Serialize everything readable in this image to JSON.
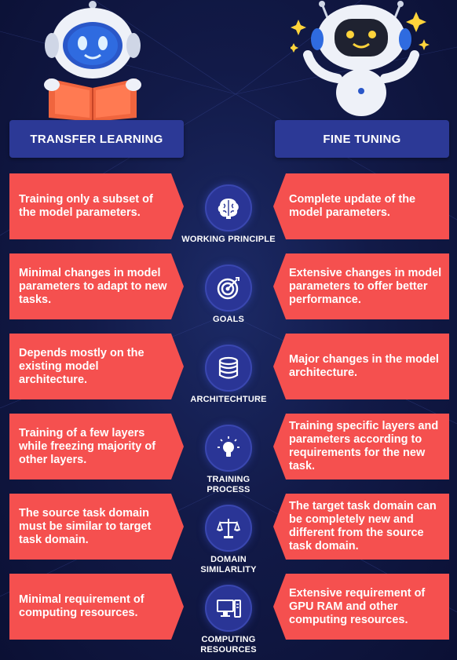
{
  "headers": {
    "left": "TRANSFER LEARNING",
    "right": "FINE TUNING"
  },
  "rows": [
    {
      "left": "Training only a subset of the model parameters.",
      "label": "WORKING PRINCIPLE",
      "icon": "brain-icon",
      "right": "Complete update of the model parameters."
    },
    {
      "left": "Minimal changes in model parameters to adapt to new tasks.",
      "label": "GOALS",
      "icon": "target-icon",
      "right": "Extensive changes in model parameters to offer better performance."
    },
    {
      "left": "Depends mostly on the existing model architecture.",
      "label": "ARCHITECHTURE",
      "icon": "database-icon",
      "right": "Major changes in the model architecture."
    },
    {
      "left": "Training of a few layers while freezing majority of other layers.",
      "label": "TRAINING PROCESS",
      "icon": "lightbulb-icon",
      "right": "Training specific layers and parameters according to requirements for the new task."
    },
    {
      "left": "The source task domain must be similar to target task domain.",
      "label": "DOMAIN SIMILARLITY",
      "icon": "scale-icon",
      "right": "The target task domain can be completely new and different from the source task domain."
    },
    {
      "left": "Minimal requirement of computing resources.",
      "label": "COMPUTING RESOURCES",
      "icon": "computer-icon",
      "right": "Extensive requirement of GPU RAM and other computing resources."
    }
  ],
  "colors": {
    "card": "#f5504f",
    "header": "#2c3996",
    "background": "#121a48",
    "icon_bg": "#2a3596"
  }
}
